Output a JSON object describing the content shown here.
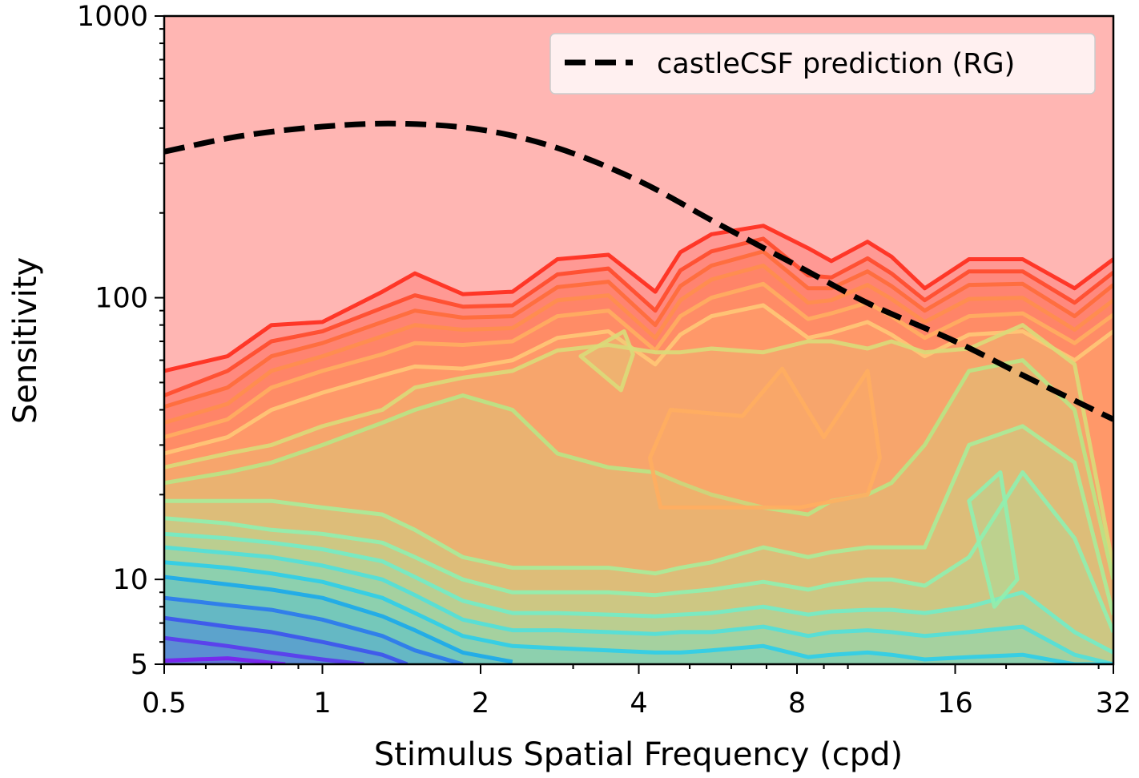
{
  "chart_data": {
    "type": "contour",
    "xlabel": "Stimulus Spatial Frequency (cpd)",
    "ylabel": "Sensitivity",
    "xscale": "log2",
    "yscale": "log10",
    "xlim": [
      0.5,
      32
    ],
    "ylim": [
      5,
      1000
    ],
    "xticks": [
      0.5,
      1,
      2,
      4,
      8,
      16,
      32
    ],
    "xtick_labels": [
      "0.5",
      "1",
      "2",
      "4",
      "8",
      "16",
      "32"
    ],
    "yticks": [
      5,
      10,
      100,
      1000
    ],
    "ytick_labels": [
      "5",
      "10",
      "100",
      "1000"
    ],
    "grid": false,
    "legend": {
      "placement": "top-right",
      "entries": [
        "castleCSF prediction (RG)"
      ]
    },
    "colormap": "rainbow",
    "series": [
      {
        "name": "castleCSF prediction (RG)",
        "style": "dashed",
        "color": "#000000",
        "x": [
          0.5,
          0.7,
          1.0,
          1.4,
          2.0,
          2.8,
          4.0,
          5.6,
          8.0,
          11.0,
          16.0,
          22.0,
          32.0
        ],
        "y": [
          330,
          375,
          405,
          415,
          395,
          340,
          260,
          185,
          130,
          95,
          70,
          52,
          37
        ]
      }
    ],
    "contours": [
      {
        "color": "#ff2a1a",
        "x": [
          0.5,
          0.66,
          0.8,
          1.0,
          1.3,
          1.5,
          1.85,
          2.3,
          2.8,
          3.5,
          4.3,
          4.8,
          5.5,
          6.9,
          8.4,
          9.3,
          10.9,
          12.1,
          14.0,
          17.0,
          21.5,
          27.0,
          32.0
        ],
        "y": [
          55,
          62,
          80,
          82,
          105,
          122,
          103,
          105,
          137,
          142,
          105,
          145,
          168,
          180,
          150,
          135,
          158,
          140,
          108,
          137,
          137,
          108,
          137
        ]
      },
      {
        "color": "#ff4a2a",
        "x": [
          0.5,
          0.66,
          0.8,
          1.0,
          1.3,
          1.5,
          1.85,
          2.3,
          2.8,
          3.5,
          4.3,
          4.8,
          5.5,
          6.9,
          8.4,
          9.3,
          10.9,
          12.1,
          14.0,
          17.0,
          21.5,
          27.0,
          32.0
        ],
        "y": [
          45,
          55,
          70,
          76,
          92,
          102,
          93,
          94,
          121,
          127,
          90,
          125,
          146,
          162,
          120,
          118,
          138,
          122,
          98,
          124,
          124,
          96,
          123
        ]
      },
      {
        "color": "#ff6c3a",
        "x": [
          0.5,
          0.66,
          0.8,
          1.0,
          1.3,
          1.5,
          1.85,
          2.3,
          2.8,
          3.5,
          4.3,
          4.8,
          5.5,
          6.9,
          8.4,
          9.3,
          10.9,
          12.1,
          14.0,
          17.0,
          21.5,
          27.0,
          32.0
        ],
        "y": [
          41,
          48,
          62,
          69,
          82,
          90,
          85,
          86,
          109,
          114,
          80,
          110,
          130,
          146,
          108,
          108,
          124,
          110,
          90,
          111,
          112,
          86,
          111
        ]
      },
      {
        "color": "#ff8e4c",
        "x": [
          0.5,
          0.66,
          0.8,
          1.0,
          1.3,
          1.5,
          1.85,
          2.3,
          2.8,
          3.5,
          4.3,
          4.8,
          5.5,
          6.9,
          8.4,
          9.3,
          10.9,
          12.1,
          14.0,
          17.0,
          21.5,
          27.0,
          32.0
        ],
        "y": [
          36,
          42,
          55,
          62,
          73,
          80,
          77,
          78,
          98,
          102,
          72,
          98,
          116,
          130,
          96,
          98,
          111,
          99,
          82,
          99,
          100,
          77,
          98
        ]
      },
      {
        "color": "#ffae60",
        "x": [
          0.5,
          0.66,
          0.8,
          1.0,
          1.3,
          1.5,
          1.85,
          2.3,
          2.8,
          3.5,
          4.3,
          4.8,
          5.5,
          6.9,
          8.4,
          9.3,
          10.9,
          12.1,
          14.0,
          17.0,
          21.5,
          27.0,
          32.0
        ],
        "y": [
          32,
          37,
          48,
          55,
          63,
          69,
          68,
          70,
          86,
          90,
          65,
          86,
          100,
          112,
          84,
          88,
          96,
          86,
          72,
          86,
          88,
          69,
          87
        ]
      },
      {
        "color": "#ffc877",
        "x": [
          0.5,
          0.66,
          0.8,
          1.0,
          1.3,
          1.5,
          1.85,
          2.3,
          2.8,
          3.5,
          4.3,
          4.8,
          5.5,
          6.9,
          8.4,
          9.3,
          10.9,
          12.1,
          14.0,
          17.0,
          21.5,
          27.0,
          32.0
        ],
        "y": [
          28,
          32,
          40,
          46,
          53,
          57,
          56,
          60,
          72,
          76,
          58,
          74,
          86,
          94,
          72,
          75,
          82,
          74,
          62,
          74,
          76,
          60,
          76
        ]
      },
      {
        "color": "#d9dc7a",
        "x": [
          0.5,
          0.66,
          0.8,
          1.0,
          1.3,
          1.5,
          1.85,
          2.3,
          2.8,
          3.5,
          4.3,
          4.8,
          5.5,
          6.9,
          8.4,
          9.3,
          10.9,
          12.1,
          14.0,
          17.0,
          21.5,
          27.0,
          32.0
        ],
        "y": [
          25,
          28,
          30,
          35,
          40,
          48,
          52,
          55,
          65,
          68,
          64,
          64,
          66,
          64,
          70,
          70,
          66,
          70,
          64,
          66,
          80,
          58,
          11
        ]
      },
      {
        "color": "#b8e686",
        "x": [
          0.5,
          0.66,
          0.8,
          1.0,
          1.3,
          1.5,
          1.85,
          2.3,
          2.8,
          3.5,
          4.3,
          4.8,
          5.5,
          6.9,
          8.4,
          9.3,
          10.9,
          12.1,
          14.0,
          17.0,
          21.5,
          27.0,
          32.0
        ],
        "y": [
          22,
          24,
          26,
          30,
          36,
          40,
          45,
          40,
          28,
          25,
          24,
          22,
          20,
          18,
          17,
          19,
          20,
          22,
          30,
          55,
          60,
          40,
          10
        ]
      },
      {
        "color": "#a8ec9a",
        "x": [
          0.5,
          0.66,
          0.8,
          1.0,
          1.3,
          1.5,
          1.85,
          2.3,
          2.8,
          3.5,
          4.3,
          4.8,
          5.5,
          6.9,
          8.4,
          9.3,
          10.9,
          12.1,
          14.0,
          17.0,
          21.5,
          27.0,
          32.0
        ],
        "y": [
          19,
          19,
          19,
          18,
          17,
          15,
          12,
          11,
          11,
          11,
          10.5,
          11,
          11.5,
          13,
          12,
          12.5,
          13,
          13,
          13,
          30,
          35,
          26,
          7.5
        ]
      },
      {
        "color": "#8ff0b0",
        "x": [
          0.5,
          0.66,
          0.8,
          1.0,
          1.3,
          1.5,
          1.85,
          2.3,
          2.8,
          3.5,
          4.3,
          4.8,
          5.5,
          6.9,
          8.4,
          9.3,
          10.9,
          12.1,
          14.0,
          17.0,
          21.5,
          27.0,
          32.0
        ],
        "y": [
          16.5,
          15.8,
          15,
          14.5,
          13.5,
          12,
          10,
          9,
          9,
          9,
          8.8,
          9,
          9.2,
          9.8,
          9.2,
          9.6,
          10,
          10,
          9.5,
          12,
          24,
          14,
          6.5
        ]
      },
      {
        "color": "#72ecc8",
        "x": [
          0.5,
          0.66,
          0.8,
          1.0,
          1.3,
          1.5,
          1.85,
          2.3,
          2.8,
          3.5,
          4.3,
          4.8,
          5.5,
          6.9,
          8.4,
          9.3,
          10.9,
          12.1,
          14.0,
          17.0,
          21.5,
          27.0,
          32.0
        ],
        "y": [
          14.5,
          14,
          13.5,
          12.8,
          11.6,
          10.2,
          8.4,
          7.6,
          7.6,
          7.5,
          7.4,
          7.5,
          7.6,
          8,
          7.5,
          7.7,
          7.8,
          7.8,
          7.6,
          8,
          9,
          6.5,
          5.5
        ]
      },
      {
        "color": "#50e0dc",
        "x": [
          0.5,
          0.66,
          0.8,
          1.0,
          1.3,
          1.5,
          1.85,
          2.3,
          2.8,
          3.5,
          4.3,
          4.8,
          5.5,
          6.9,
          8.4,
          9.3,
          10.9,
          12.1,
          14.0,
          17.0,
          21.5,
          27.0,
          32.0
        ],
        "y": [
          13,
          12.4,
          12,
          11.2,
          10,
          8.8,
          7.2,
          6.6,
          6.6,
          6.5,
          6.4,
          6.5,
          6.5,
          6.8,
          6.3,
          6.5,
          6.6,
          6.5,
          6.3,
          6.5,
          6.8,
          5.4,
          5
        ]
      },
      {
        "color": "#2ccdea",
        "x": [
          0.5,
          0.66,
          0.8,
          1.0,
          1.3,
          1.5,
          1.85,
          2.3,
          2.8,
          3.5,
          4.3,
          4.8,
          5.5,
          6.9,
          8.4,
          9.3,
          10.9,
          12.1,
          14.0,
          17.0,
          21.5,
          27.0,
          32.0
        ],
        "y": [
          11.5,
          11,
          10.5,
          9.8,
          8.6,
          7.6,
          6.3,
          5.8,
          5.7,
          5.6,
          5.5,
          5.5,
          5.6,
          5.8,
          5.3,
          5.4,
          5.5,
          5.4,
          5.2,
          5.3,
          5.4,
          5,
          5
        ]
      },
      {
        "color": "#1aa8ec",
        "x": [
          0.5,
          0.66,
          0.8,
          1.0,
          1.3,
          1.5,
          1.85,
          2.3
        ],
        "y": [
          10.2,
          9.6,
          9.2,
          8.6,
          7.4,
          6.6,
          5.5,
          5.1
        ]
      },
      {
        "color": "#2a78ee",
        "x": [
          0.5,
          0.66,
          0.8,
          1.0,
          1.3,
          1.5,
          1.85
        ],
        "y": [
          8.6,
          8.1,
          7.8,
          7.2,
          6.3,
          5.6,
          5.0
        ]
      },
      {
        "color": "#3c52ee",
        "x": [
          0.5,
          0.66,
          0.8,
          1.0,
          1.3,
          1.45
        ],
        "y": [
          7.3,
          6.8,
          6.5,
          6.0,
          5.4,
          5.0
        ]
      },
      {
        "color": "#5a38ee",
        "x": [
          0.5,
          0.66,
          0.8,
          1.0,
          1.2
        ],
        "y": [
          6.2,
          5.8,
          5.5,
          5.2,
          5.0
        ]
      },
      {
        "color": "#7a1ef0",
        "x": [
          0.5,
          0.66,
          0.85
        ],
        "y": [
          5.15,
          5.25,
          5.0
        ]
      }
    ],
    "islands": [
      {
        "color": "#d9dc7a",
        "x": [
          3.1,
          3.75,
          3.9,
          3.7,
          3.1
        ],
        "y": [
          62,
          76,
          63,
          47,
          62
        ]
      },
      {
        "color": "#ffae60",
        "x": [
          4.2,
          4.6,
          6.3,
          7.5,
          9.0,
          10.9,
          11.5,
          10.9,
          8.1,
          4.4,
          4.2
        ],
        "y": [
          27,
          40,
          38,
          56,
          32,
          55,
          27,
          20,
          18,
          18,
          27
        ]
      },
      {
        "color": "#8ff0b0",
        "x": [
          17.0,
          19.5,
          21.0,
          19.0,
          17.0
        ],
        "y": [
          19,
          24,
          10,
          8,
          19
        ]
      }
    ]
  }
}
